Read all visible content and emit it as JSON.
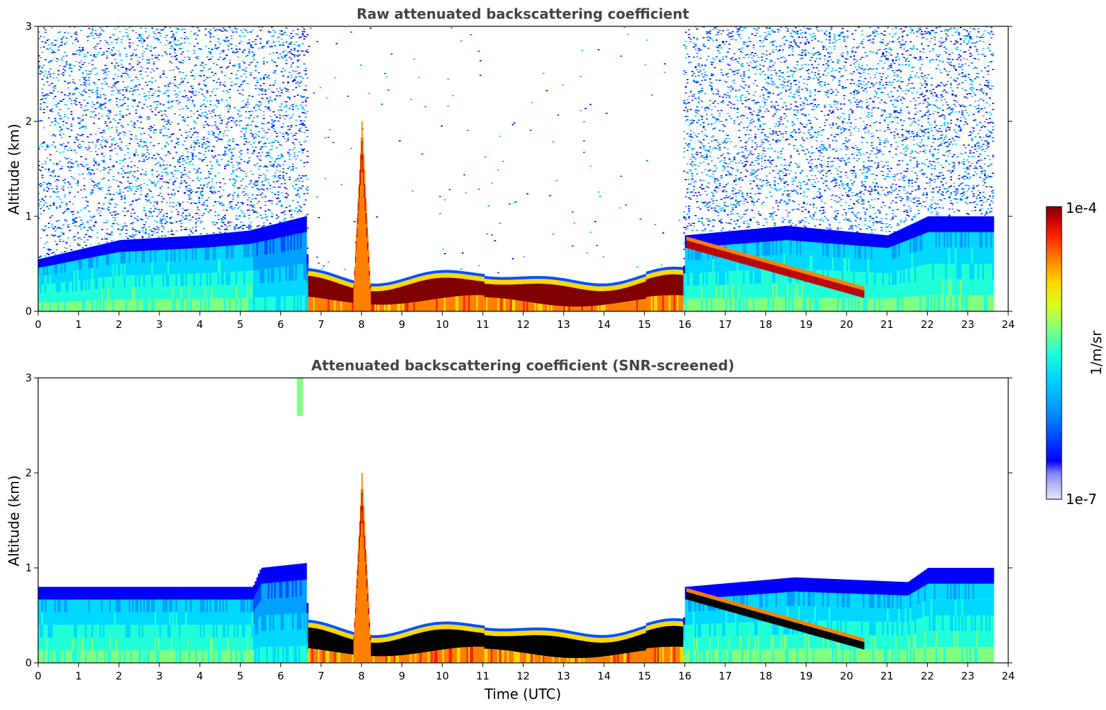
{
  "chart_data": [
    {
      "type": "heatmap",
      "title": "Raw attenuated backscattering coefficient",
      "xlabel": "",
      "ylabel": "Altitude (km)",
      "xlim": [
        0,
        24
      ],
      "ylim": [
        0,
        3
      ],
      "x_ticks": [
        0,
        1,
        2,
        3,
        4,
        5,
        6,
        7,
        8,
        9,
        10,
        11,
        12,
        13,
        14,
        15,
        16,
        17,
        18,
        19,
        20,
        21,
        22,
        23,
        24
      ],
      "y_ticks": [
        0,
        1,
        2,
        3
      ],
      "data_end_time": 23.6,
      "mixed_layer_top_km": [
        [
          0,
          0.55
        ],
        [
          2,
          0.75
        ],
        [
          4,
          0.8
        ],
        [
          5.2,
          0.85
        ],
        [
          6.6,
          1.0
        ],
        [
          6.7,
          0.0
        ],
        [
          15.9,
          0.0
        ],
        [
          16,
          0.8
        ],
        [
          18.5,
          0.9
        ],
        [
          21,
          0.8
        ],
        [
          22,
          1.0
        ],
        [
          23.6,
          1.0
        ]
      ],
      "cloud_layer": [
        {
          "t_start": 6.6,
          "t_end": 15.9,
          "base_km": 0.2,
          "top_km": 0.35
        },
        {
          "t_start": 16.0,
          "t_end": 20.4,
          "base_km": 0.25,
          "top_km": 0.75
        }
      ],
      "plume": {
        "t_start": 7.8,
        "t_end": 8.2,
        "top_km": 2.0
      }
    },
    {
      "type": "heatmap",
      "title": "Attenuated backscattering coefficient (SNR-screened)",
      "xlabel": "Time (UTC)",
      "ylabel": "Altitude (km)",
      "xlim": [
        0,
        24
      ],
      "ylim": [
        0,
        3
      ],
      "x_ticks": [
        0,
        1,
        2,
        3,
        4,
        5,
        6,
        7,
        8,
        9,
        10,
        11,
        12,
        13,
        14,
        15,
        16,
        17,
        18,
        19,
        20,
        21,
        22,
        23,
        24
      ],
      "y_ticks": [
        0,
        1,
        2,
        3
      ],
      "data_end_time": 23.6,
      "mixed_layer_top_km": [
        [
          0,
          0.8
        ],
        [
          2,
          0.8
        ],
        [
          5.3,
          0.8
        ],
        [
          5.5,
          1.0
        ],
        [
          6.6,
          1.05
        ],
        [
          6.7,
          0.0
        ],
        [
          15.9,
          0.0
        ],
        [
          16,
          0.8
        ],
        [
          18.7,
          0.9
        ],
        [
          21.5,
          0.85
        ],
        [
          22,
          1.0
        ],
        [
          23.6,
          1.0
        ]
      ],
      "plume": {
        "t_start": 7.8,
        "t_end": 8.2,
        "top_km": 2.0
      }
    }
  ],
  "colorbar": {
    "min_label": "1e-7",
    "max_label": "1e-4",
    "unit_label": "1/m/sr",
    "scale": "log",
    "colors": [
      "#e6e6fa",
      "#b4b4f0",
      "#8080ff",
      "#0000ff",
      "#0050ff",
      "#00a0ff",
      "#00d8ff",
      "#20ffd8",
      "#80ff80",
      "#d8ff20",
      "#ffd800",
      "#ff8000",
      "#ff2000",
      "#c00000",
      "#800000"
    ]
  }
}
